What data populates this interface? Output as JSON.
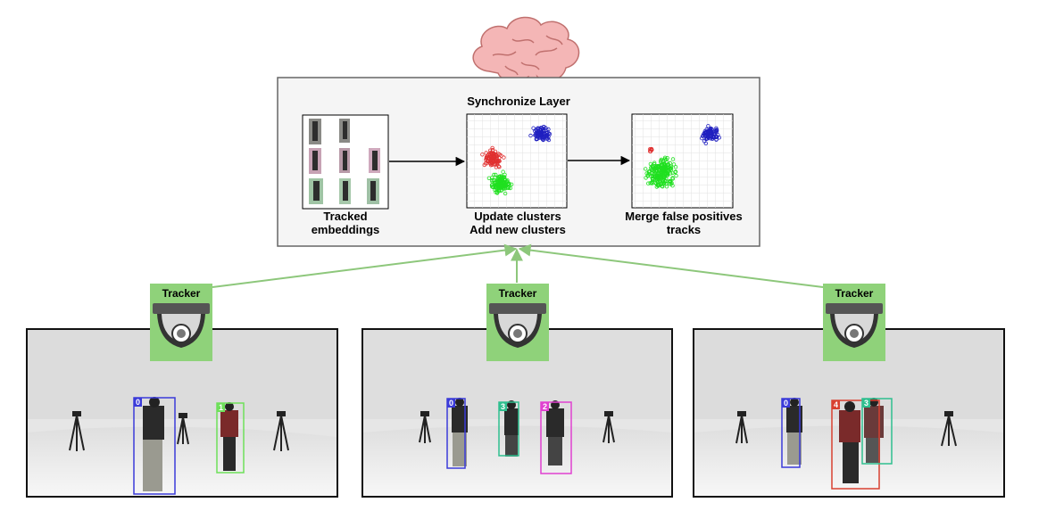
{
  "sync_layer": {
    "title": "Synchronize Layer",
    "stages": [
      {
        "line1": "Tracked",
        "line2": "embeddings"
      },
      {
        "line1": "Update clusters",
        "line2": "Add new clusters"
      },
      {
        "line1": "Merge false positives",
        "line2": "tracks"
      }
    ]
  },
  "trackers": [
    {
      "label": "Tracker",
      "boxes": [
        {
          "id": "0",
          "color": "#3b3bd9"
        },
        {
          "id": "1",
          "color": "#6ee05a"
        }
      ]
    },
    {
      "label": "Tracker",
      "boxes": [
        {
          "id": "0",
          "color": "#3b3bd9"
        },
        {
          "id": "3",
          "color": "#2fbf8f"
        },
        {
          "id": "2",
          "color": "#e040d0"
        }
      ]
    },
    {
      "label": "Tracker",
      "boxes": [
        {
          "id": "0",
          "color": "#3b3bd9"
        },
        {
          "id": "4",
          "color": "#d84030"
        },
        {
          "id": "3",
          "color": "#2fbf8f"
        }
      ]
    }
  ],
  "colors": {
    "arrow_green": "#8dc77b",
    "tracker_green": "#8fd27a",
    "cluster_red": "#e03030",
    "cluster_blue": "#2020c0",
    "cluster_green": "#20e020",
    "brain": "#f4b6b6"
  }
}
